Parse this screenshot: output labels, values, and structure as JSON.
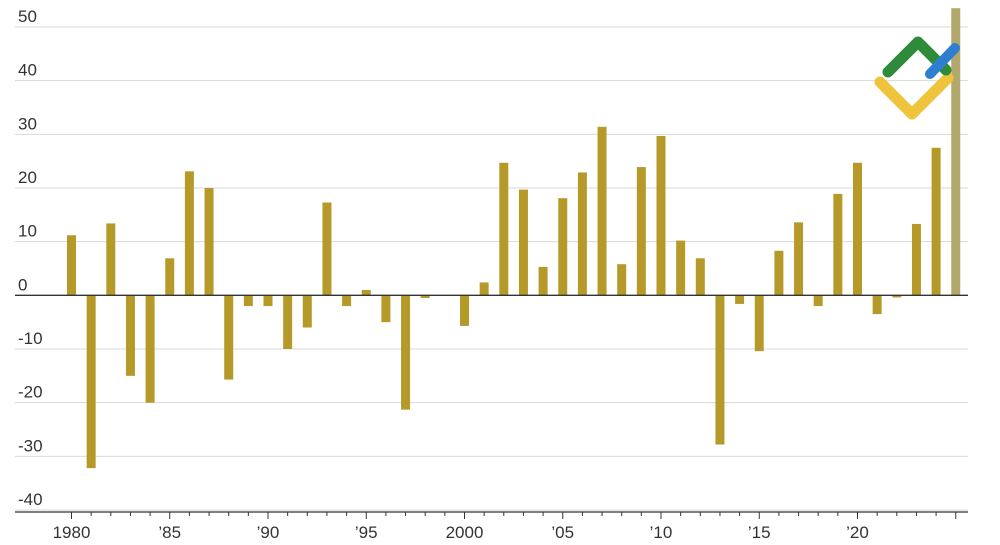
{
  "chart_data": {
    "type": "bar",
    "title": "",
    "xlabel": "",
    "ylabel": "",
    "ylim": [
      -40,
      50
    ],
    "yticks": [
      50,
      40,
      30,
      20,
      10,
      0,
      -10,
      -20,
      -30,
      -40
    ],
    "xtick_labels": [
      {
        "year": 1980,
        "label": "1980"
      },
      {
        "year": 1985,
        "label": "’85"
      },
      {
        "year": 1990,
        "label": "’90"
      },
      {
        "year": 1995,
        "label": "’95"
      },
      {
        "year": 2000,
        "label": "2000"
      },
      {
        "year": 2005,
        "label": "’05"
      },
      {
        "year": 2010,
        "label": "’10"
      },
      {
        "year": 2015,
        "label": "’15"
      },
      {
        "year": 2020,
        "label": "’20"
      }
    ],
    "grid": true,
    "categories": [
      1980,
      1981,
      1982,
      1983,
      1984,
      1985,
      1986,
      1987,
      1988,
      1989,
      1990,
      1991,
      1992,
      1993,
      1994,
      1995,
      1996,
      1997,
      1998,
      1999,
      2000,
      2001,
      2002,
      2003,
      2004,
      2005,
      2006,
      2007,
      2008,
      2009,
      2010,
      2011,
      2012,
      2013,
      2014,
      2015,
      2016,
      2017,
      2018,
      2019,
      2020,
      2021,
      2022,
      2023,
      2024,
      2025
    ],
    "values": [
      11.2,
      -32.2,
      13.4,
      -15,
      -20,
      6.9,
      23.1,
      20,
      -15.7,
      -2,
      -2,
      -10,
      -6,
      17.3,
      -2,
      1,
      -5,
      -21.3,
      -0.5,
      0,
      -5.7,
      2.4,
      24.7,
      19.7,
      5.3,
      18.1,
      22.9,
      31.4,
      5.8,
      23.9,
      29.7,
      10.2,
      6.9,
      -27.8,
      -1.6,
      -10.4,
      8.3,
      13.6,
      -2,
      18.9,
      24.7,
      -3.5,
      -0.4,
      13.3,
      27.5,
      53.5
    ],
    "colors": {
      "bar": "#b59a2a",
      "highlight": "#b3a86b"
    },
    "highlight_category": 2025
  },
  "logo": {
    "name": "brand-logo",
    "colors": {
      "green": "#2e8b3a",
      "blue": "#2f7fd0",
      "yellow": "#f0c33c"
    }
  }
}
